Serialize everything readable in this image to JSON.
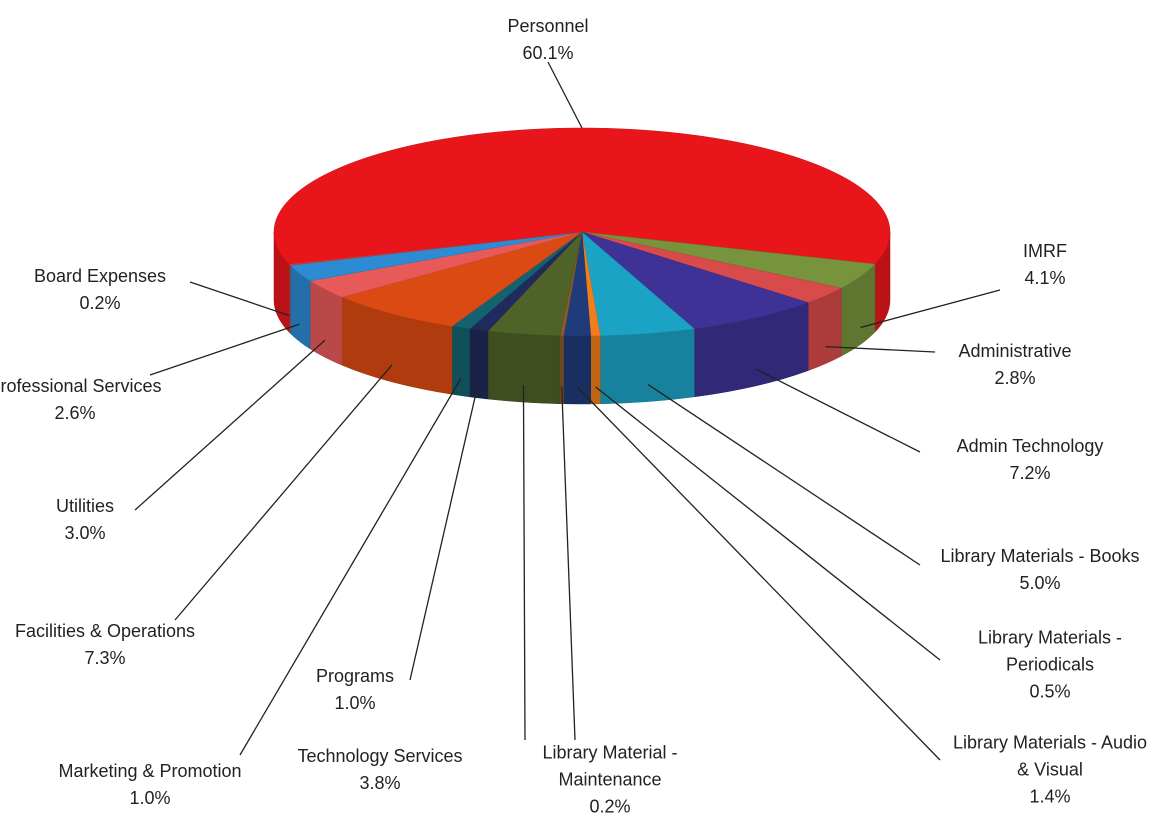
{
  "chart_data": {
    "type": "pie",
    "categories": [
      "Personnel",
      "IMRF",
      "Administrative",
      "Admin Technology",
      "Library Materials - Books",
      "Library Materials - Periodicals",
      "Library Materials - Audio & Visual",
      "Library Material - Maintenance",
      "Technology Services",
      "Programs",
      "Marketing & Promotion",
      "Facilities & Operations",
      "Utilities",
      "Professional Services",
      "Board Expenses"
    ],
    "values": [
      60.1,
      4.1,
      2.8,
      7.2,
      5.0,
      0.5,
      1.4,
      0.2,
      3.8,
      1.0,
      1.0,
      7.3,
      3.0,
      2.6,
      0.2
    ],
    "value_labels": [
      "60.1%",
      "4.1%",
      "2.8%",
      "7.2%",
      "5.0%",
      "0.5%",
      "1.4%",
      "0.2%",
      "3.8%",
      "1.0%",
      "1.0%",
      "7.3%",
      "3.0%",
      "2.6%",
      "0.2%"
    ],
    "colors": [
      "#e8161b",
      "#77933c",
      "#d94a4a",
      "#3f3296",
      "#1ba3c6",
      "#f07e1c",
      "#1f3b7a",
      "#8a5a2a",
      "#4f6228",
      "#202a5c",
      "#14616f",
      "#db4a12",
      "#e85a5a",
      "#2d8bd4",
      "#e03535"
    ]
  }
}
